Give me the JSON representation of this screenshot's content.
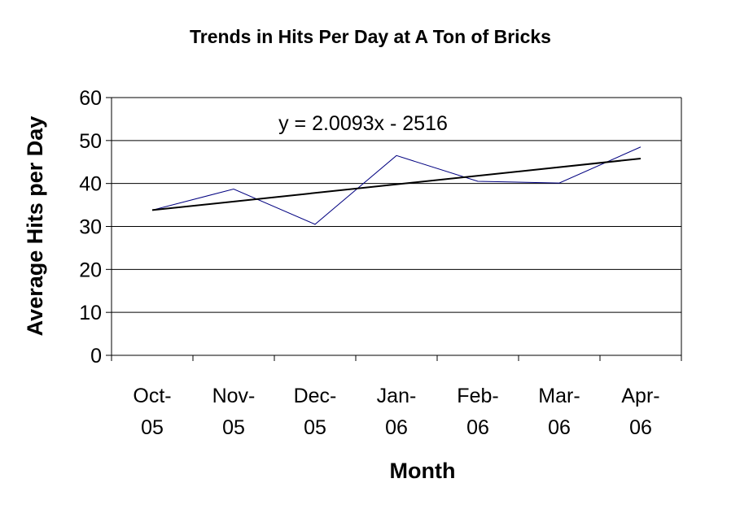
{
  "chart_data": {
    "type": "line",
    "title": "Trends in Hits Per Day at A Ton of Bricks",
    "xlabel": "Month",
    "ylabel": "Average Hits per Day",
    "ylim": [
      0,
      60
    ],
    "yticks": [
      "0",
      "10",
      "20",
      "30",
      "40",
      "50",
      "60"
    ],
    "grid": true,
    "legend": "none",
    "categories": [
      [
        "Oct-",
        "05"
      ],
      [
        "Nov-",
        "05"
      ],
      [
        "Dec-",
        "05"
      ],
      [
        "Jan-",
        "06"
      ],
      [
        "Feb-",
        "06"
      ],
      [
        "Mar-",
        "06"
      ],
      [
        "Apr-",
        "06"
      ]
    ],
    "series": [
      {
        "values": [
          33.8,
          38.7,
          30.5,
          46.5,
          40.5,
          40.1,
          48.5
        ],
        "color": "#000080"
      }
    ],
    "trendline": {
      "type": "linear",
      "equation": "y = 2.0093x - 2516",
      "start": 33.8,
      "end": 45.8,
      "color": "#000000"
    }
  }
}
